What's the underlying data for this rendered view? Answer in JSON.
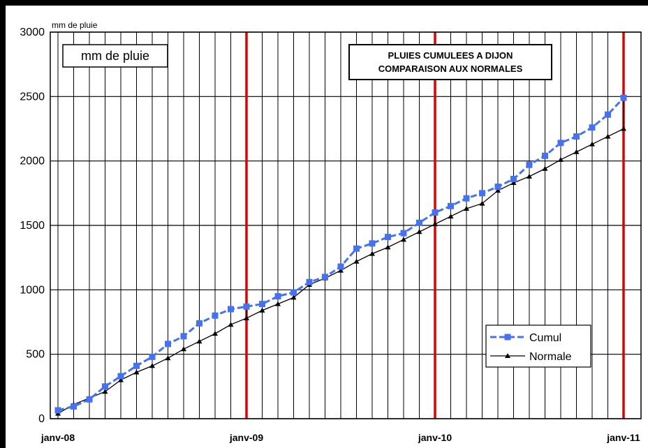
{
  "chart_data": {
    "type": "line",
    "title_lines": [
      "PLUIES CUMULEES A DIJON",
      "COMPARAISON AUX NORMALES"
    ],
    "unit_label_top": "mm de pluie",
    "unit_label_box": "mm de pluie",
    "ylim": [
      0,
      3000
    ],
    "y_ticks": [
      "0",
      "500",
      "1000",
      "1500",
      "2000",
      "2500",
      "3000"
    ],
    "x_major_labels": [
      "janv-08",
      "janv-09",
      "janv-10",
      "janv-11"
    ],
    "grid": true,
    "legend_placement": "bottom-right",
    "x_months": [
      "2008-01",
      "2008-02",
      "2008-03",
      "2008-04",
      "2008-05",
      "2008-06",
      "2008-07",
      "2008-08",
      "2008-09",
      "2008-10",
      "2008-11",
      "2008-12",
      "2009-01",
      "2009-02",
      "2009-03",
      "2009-04",
      "2009-05",
      "2009-06",
      "2009-07",
      "2009-08",
      "2009-09",
      "2009-10",
      "2009-11",
      "2009-12",
      "2010-01",
      "2010-02",
      "2010-03",
      "2010-04",
      "2010-05",
      "2010-06",
      "2010-07",
      "2010-08",
      "2010-09",
      "2010-10",
      "2010-11",
      "2010-12",
      "2011-01"
    ],
    "series": [
      {
        "name": "Cumul",
        "color": "#4472f0",
        "values": [
          65,
          95,
          150,
          250,
          330,
          410,
          480,
          580,
          640,
          740,
          800,
          850,
          870,
          890,
          950,
          980,
          1060,
          1100,
          1180,
          1320,
          1360,
          1410,
          1440,
          1520,
          1600,
          1650,
          1710,
          1750,
          1800,
          1860,
          1970,
          2040,
          2140,
          2190,
          2260,
          2360,
          2490
        ]
      },
      {
        "name": "Normale",
        "color": "#000000",
        "values": [
          40,
          110,
          160,
          210,
          300,
          360,
          410,
          470,
          540,
          600,
          660,
          730,
          780,
          840,
          890,
          940,
          1040,
          1090,
          1150,
          1220,
          1280,
          1330,
          1390,
          1450,
          1510,
          1570,
          1630,
          1670,
          1770,
          1830,
          1880,
          1940,
          2010,
          2070,
          2130,
          2190,
          2250
        ]
      }
    ],
    "year_line_color": "#e00000"
  }
}
